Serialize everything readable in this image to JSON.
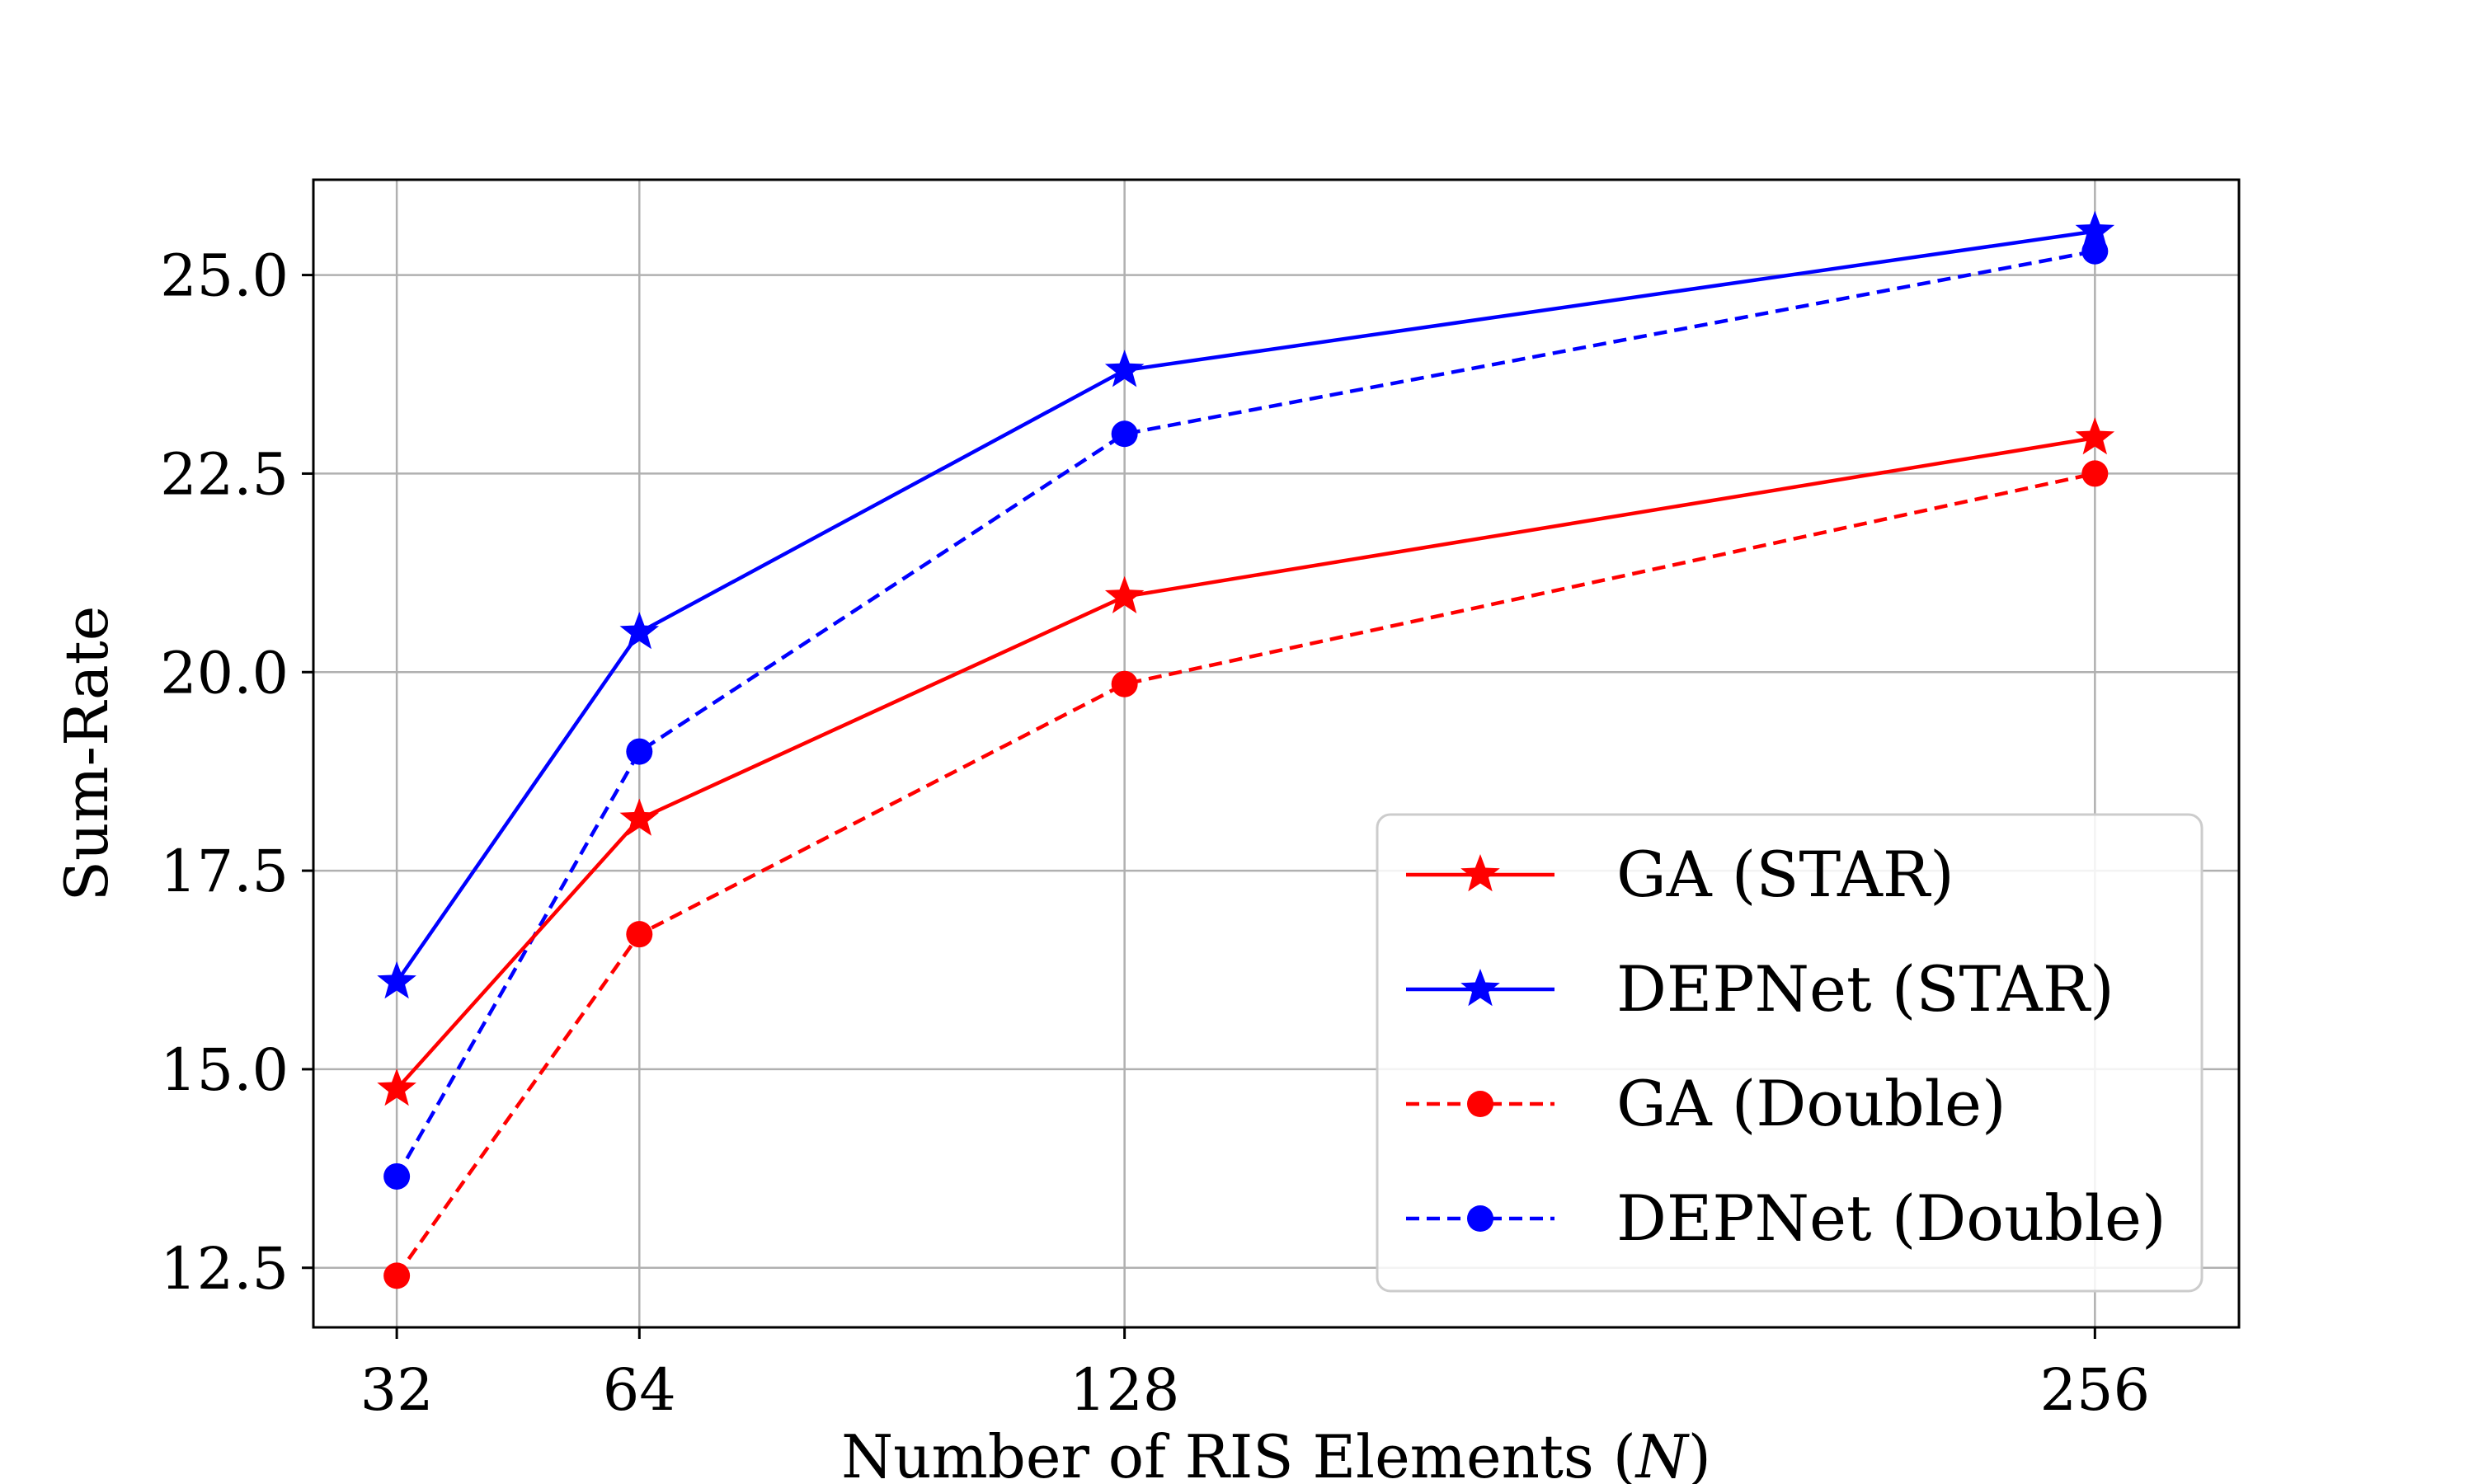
{
  "chart_data": {
    "type": "line",
    "title": "",
    "xlabel": "Number of RIS Elements (N)",
    "ylabel": "Sum-Rate",
    "x": [
      32,
      64,
      128,
      256
    ],
    "x_tick_labels": [
      "32",
      "64",
      "128",
      "256"
    ],
    "xlim": [
      21,
      275
    ],
    "y_ticks": [
      12.5,
      15.0,
      17.5,
      20.0,
      22.5,
      25.0
    ],
    "y_tick_labels": [
      "12.5",
      "15.0",
      "17.5",
      "20.0",
      "22.5",
      "25.0"
    ],
    "ylim": [
      11.75,
      26.2
    ],
    "grid": true,
    "legend_position": "lower-right",
    "series": [
      {
        "name": "GA (STAR)",
        "values": [
          14.75,
          18.15,
          20.95,
          22.95
        ],
        "color": "#ff0000",
        "line_style": "solid",
        "marker": "star"
      },
      {
        "name": "DEPNet (STAR)",
        "values": [
          16.1,
          20.5,
          23.8,
          25.55
        ],
        "color": "#0000ff",
        "line_style": "solid",
        "marker": "star"
      },
      {
        "name": "GA (Double)",
        "values": [
          12.4,
          16.7,
          19.85,
          22.5
        ],
        "color": "#ff0000",
        "line_style": "dashed",
        "marker": "circle"
      },
      {
        "name": "DEPNet (Double)",
        "values": [
          13.65,
          19.0,
          23.0,
          25.3
        ],
        "color": "#0000ff",
        "line_style": "dashed",
        "marker": "circle"
      }
    ]
  }
}
